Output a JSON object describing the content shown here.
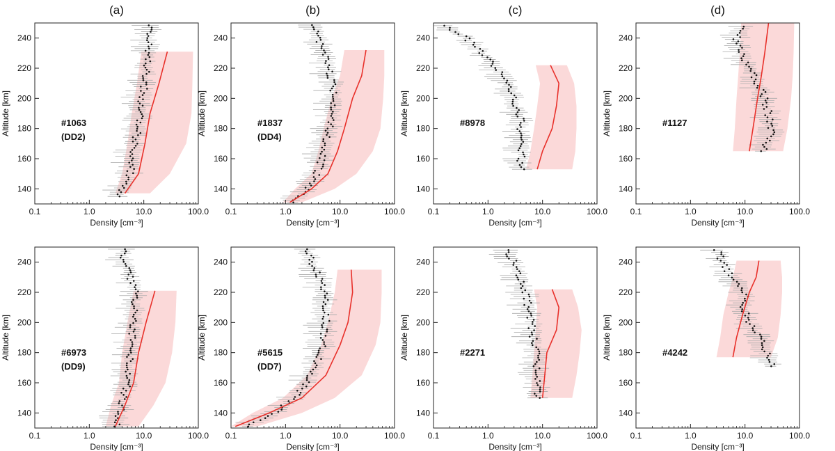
{
  "column_labels": [
    "(a)",
    "(b)",
    "(c)",
    "(d)"
  ],
  "colors": {
    "model_line": "#e8302a",
    "model_band": "#fbd9d9",
    "obs": "#111111",
    "obs_err": "#aaaaaa"
  },
  "chart_data": [
    {
      "type": "line",
      "panel": "a-top",
      "label_id": "#1063",
      "label_sub": "(DD2)",
      "xlabel": "Density [cm⁻³]",
      "ylabel": "Altitude [km]",
      "xscale": "log",
      "xlim": [
        0.1,
        100
      ],
      "ylim": [
        130,
        250
      ],
      "xticks": [
        "0.1",
        "1.0",
        "10.0",
        "100.0"
      ],
      "yticks": [
        "140",
        "160",
        "180",
        "200",
        "220",
        "240"
      ],
      "model": {
        "alt": [
          137,
          150,
          170,
          190,
          210,
          231
        ],
        "density": [
          4.5,
          8,
          10.5,
          13,
          19,
          27
        ],
        "band_low": [
          3,
          4,
          5,
          6,
          7.5,
          9
        ],
        "band_high": [
          13,
          30,
          60,
          75,
          78,
          80
        ]
      },
      "obs": {
        "alt_start": 135,
        "alt_end": 249,
        "points": [
          [
            135,
            3.6
          ],
          [
            150,
            5.5
          ],
          [
            170,
            7
          ],
          [
            190,
            8.5
          ],
          [
            210,
            10.5
          ],
          [
            230,
            12.5
          ],
          [
            249,
            14
          ]
        ]
      }
    },
    {
      "type": "line",
      "panel": "b-top",
      "label_id": "#1837",
      "label_sub": "(DD4)",
      "xlabel": "Density [cm⁻³]",
      "ylabel": "Altitude [km]",
      "xscale": "log",
      "xlim": [
        0.1,
        100
      ],
      "ylim": [
        130,
        250
      ],
      "xticks": [
        "0.1",
        "1.0",
        "10.0",
        "100.0"
      ],
      "yticks": [
        "140",
        "160",
        "180",
        "200",
        "220",
        "240"
      ],
      "model": {
        "alt": [
          131,
          140,
          150,
          165,
          180,
          200,
          215,
          232
        ],
        "density": [
          1.2,
          3,
          6,
          9,
          12,
          17,
          25,
          30
        ],
        "band_low": [
          0.9,
          1.5,
          3,
          4,
          5,
          7,
          10,
          12
        ],
        "band_high": [
          2,
          8,
          20,
          40,
          55,
          62,
          65,
          65
        ]
      },
      "obs": {
        "alt_start": 131,
        "alt_end": 249,
        "points": [
          [
            131,
            1.3
          ],
          [
            140,
            2.5
          ],
          [
            150,
            3.8
          ],
          [
            170,
            5.5
          ],
          [
            185,
            7
          ],
          [
            200,
            8
          ],
          [
            215,
            6.5
          ],
          [
            230,
            5
          ],
          [
            249,
            3.5
          ]
        ]
      }
    },
    {
      "type": "line",
      "panel": "c-top",
      "label_id": "#8978",
      "label_sub": "",
      "xlabel": "Density [cm⁻³]",
      "ylabel": "Altitude [km]",
      "xscale": "log",
      "xlim": [
        0.1,
        100
      ],
      "ylim": [
        130,
        250
      ],
      "xticks": [
        "0.1",
        "1.0",
        "10.0",
        "100.0"
      ],
      "yticks": [
        "140",
        "160",
        "180",
        "200",
        "220",
        "240"
      ],
      "model": {
        "alt": [
          153,
          165,
          180,
          195,
          210,
          222
        ],
        "density": [
          8,
          10,
          15,
          18,
          20,
          14
        ],
        "band_low": [
          5,
          6,
          7,
          8,
          9,
          7.5
        ],
        "band_high": [
          35,
          40,
          42,
          42,
          38,
          28
        ]
      },
      "obs": {
        "alt_start": 153,
        "alt_end": 249,
        "points": [
          [
            153,
            4
          ],
          [
            170,
            4
          ],
          [
            185,
            4
          ],
          [
            200,
            3
          ],
          [
            215,
            2
          ],
          [
            230,
            0.8
          ],
          [
            240,
            0.4
          ],
          [
            249,
            0.15
          ]
        ]
      }
    },
    {
      "type": "line",
      "panel": "d-top",
      "label_id": "#1127",
      "label_sub": "",
      "xlabel": "Density [cm⁻³]",
      "ylabel": "Altitude [km]",
      "xscale": "log",
      "xlim": [
        0.1,
        100
      ],
      "ylim": [
        130,
        250
      ],
      "xticks": [
        "0.1",
        "1.0",
        "10.0",
        "100.0"
      ],
      "yticks": [
        "140",
        "160",
        "180",
        "200",
        "220",
        "240"
      ],
      "model": {
        "alt": [
          165,
          180,
          200,
          215,
          230,
          250
        ],
        "density": [
          12,
          14,
          17,
          20,
          23,
          27
        ],
        "band_low": [
          6,
          6.5,
          7,
          7.5,
          8,
          8.5
        ],
        "band_high": [
          50,
          60,
          70,
          75,
          78,
          80
        ]
      },
      "obs": {
        "alt_start": 165,
        "alt_end": 249,
        "points": [
          [
            165,
            22
          ],
          [
            175,
            30
          ],
          [
            190,
            27
          ],
          [
            205,
            20
          ],
          [
            215,
            14
          ],
          [
            225,
            10
          ],
          [
            240,
            7
          ],
          [
            249,
            9
          ]
        ]
      }
    },
    {
      "type": "line",
      "panel": "a-bottom",
      "label_id": "#6973",
      "label_sub": "(DD9)",
      "xlabel": "Density [cm⁻³]",
      "ylabel": "Altitude [km]",
      "xscale": "log",
      "xlim": [
        0.1,
        100
      ],
      "ylim": [
        130,
        250
      ],
      "xticks": [
        "0.1",
        "1.0",
        "10.0",
        "100.0"
      ],
      "yticks": [
        "140",
        "160",
        "180",
        "200",
        "220",
        "240"
      ],
      "model": {
        "alt": [
          131,
          145,
          160,
          180,
          200,
          221
        ],
        "density": [
          3,
          4.5,
          6.5,
          8,
          11,
          16
        ],
        "band_low": [
          2,
          2.5,
          3.5,
          4,
          5,
          6.5
        ],
        "band_high": [
          8,
          15,
          25,
          33,
          38,
          40
        ]
      },
      "obs": {
        "alt_start": 131,
        "alt_end": 249,
        "points": [
          [
            131,
            3
          ],
          [
            145,
            4
          ],
          [
            160,
            5
          ],
          [
            180,
            5.5
          ],
          [
            200,
            6.5
          ],
          [
            220,
            7
          ],
          [
            235,
            5
          ],
          [
            249,
            4
          ]
        ]
      }
    },
    {
      "type": "line",
      "panel": "b-bottom",
      "label_id": "#5615",
      "label_sub": "(DD7)",
      "xlabel": "Density [cm⁻³]",
      "ylabel": "Altitude [km]",
      "xscale": "log",
      "xlim": [
        0.1,
        100
      ],
      "ylim": [
        130,
        250
      ],
      "xticks": [
        "0.1",
        "1.0",
        "10.0",
        "100.0"
      ],
      "yticks": [
        "140",
        "160",
        "180",
        "200",
        "220",
        "240"
      ],
      "model": {
        "alt": [
          131,
          140,
          150,
          165,
          185,
          200,
          220,
          235
        ],
        "density": [
          0.12,
          0.5,
          2,
          5.5,
          10,
          14,
          17,
          16
        ],
        "band_low": [
          0.1,
          0.25,
          0.9,
          2.5,
          4.5,
          6,
          8,
          9
        ],
        "band_high": [
          0.3,
          2,
          8,
          25,
          45,
          55,
          58,
          58
        ]
      },
      "obs": {
        "alt_start": 131,
        "alt_end": 249,
        "points": [
          [
            131,
            0.2
          ],
          [
            140,
            0.6
          ],
          [
            150,
            1.5
          ],
          [
            165,
            3
          ],
          [
            180,
            4.5
          ],
          [
            200,
            5.5
          ],
          [
            220,
            5
          ],
          [
            235,
            3.5
          ],
          [
            249,
            2.5
          ]
        ]
      }
    },
    {
      "type": "line",
      "panel": "c-bottom",
      "label_id": "#2271",
      "label_sub": "",
      "xlabel": "Density [cm⁻³]",
      "ylabel": "Altitude [km]",
      "xscale": "log",
      "xlim": [
        0.1,
        100
      ],
      "ylim": [
        130,
        250
      ],
      "xticks": [
        "0.1",
        "1.0",
        "10.0",
        "100.0"
      ],
      "yticks": [
        "140",
        "160",
        "180",
        "200",
        "220",
        "240"
      ],
      "model": {
        "alt": [
          150,
          165,
          180,
          195,
          210,
          222
        ],
        "density": [
          10,
          11,
          12,
          18,
          20,
          15
        ],
        "band_low": [
          6,
          6.5,
          7,
          7.5,
          8,
          7
        ],
        "band_high": [
          35,
          42,
          48,
          52,
          45,
          35
        ]
      },
      "obs": {
        "alt_start": 150,
        "alt_end": 249,
        "points": [
          [
            150,
            8
          ],
          [
            165,
            7.5
          ],
          [
            180,
            7.5
          ],
          [
            195,
            6.5
          ],
          [
            210,
            5.5
          ],
          [
            225,
            4.5
          ],
          [
            240,
            3
          ],
          [
            249,
            2
          ]
        ]
      }
    },
    {
      "type": "line",
      "panel": "d-bottom",
      "label_id": "#4242",
      "label_sub": "",
      "xlabel": "Density [cm⁻³]",
      "ylabel": "Altitude [km]",
      "xscale": "log",
      "xlim": [
        0.1,
        100
      ],
      "ylim": [
        130,
        250
      ],
      "xticks": [
        "0.1",
        "1.0",
        "10.0",
        "100.0"
      ],
      "yticks": [
        "140",
        "160",
        "180",
        "200",
        "220",
        "240"
      ],
      "model": {
        "alt": [
          177,
          190,
          205,
          220,
          230,
          241
        ],
        "density": [
          6,
          7,
          9,
          12,
          16,
          18
        ],
        "band_low": [
          3,
          3.5,
          4,
          5,
          6,
          7
        ],
        "band_high": [
          30,
          40,
          45,
          48,
          48,
          45
        ]
      },
      "obs": {
        "alt_start": 171,
        "alt_end": 249,
        "points": [
          [
            171,
            35
          ],
          [
            180,
            25
          ],
          [
            190,
            20
          ],
          [
            200,
            12
          ],
          [
            210,
            9
          ],
          [
            220,
            10
          ],
          [
            232,
            5
          ],
          [
            249,
            3
          ]
        ]
      }
    }
  ]
}
